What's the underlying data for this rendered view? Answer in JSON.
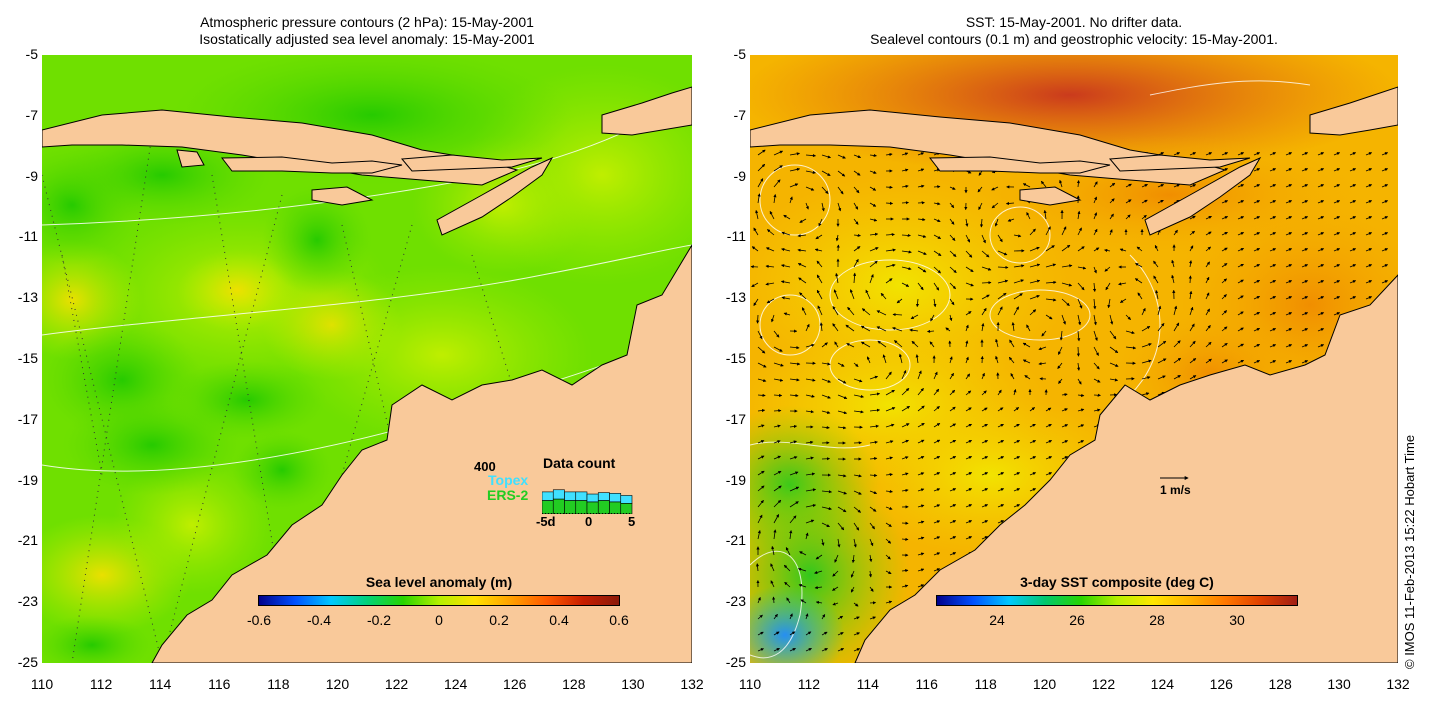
{
  "left_panel": {
    "title_line1": "Atmospheric pressure contours (2 hPa): 15-May-2001",
    "title_line2": "Isostatically adjusted sea level anomaly: 15-May-2001",
    "colorbar": {
      "title": "Sea level anomaly (m)",
      "labels": [
        "-0.6",
        "-0.4",
        "-0.2",
        "0",
        "0.2",
        "0.4",
        "0.6"
      ],
      "range": [
        -0.6,
        0.6
      ]
    },
    "data_count": {
      "title": "Data count",
      "max_label": "400",
      "series_top": "Topex",
      "series_bottom": "ERS-2",
      "x_labels": [
        "-5d",
        "0",
        "5"
      ],
      "topex_color": "#40e0ff",
      "ers2_color": "#22cc22",
      "topex_counts": [
        120,
        130,
        120,
        120,
        110,
        110,
        120,
        110
      ],
      "ers2_counts": [
        190,
        210,
        190,
        190,
        170,
        190,
        170,
        150
      ]
    }
  },
  "right_panel": {
    "title_line1": "SST: 15-May-2001. No drifter data.",
    "title_line2": "Sealevel contours (0.1 m) and geostrophic velocity: 15-May-2001.",
    "colorbar": {
      "title": "3-day SST composite (deg C)",
      "labels": [
        "24",
        "26",
        "28",
        "30"
      ],
      "range": [
        22.5,
        31.5
      ]
    },
    "velocity_scale_label": "1 m/s"
  },
  "axes": {
    "lat_labels": [
      "-5",
      "-7",
      "-9",
      "-11",
      "-13",
      "-15",
      "-17",
      "-19",
      "-21",
      "-23",
      "-25"
    ],
    "lon_labels": [
      "110",
      "112",
      "114",
      "116",
      "118",
      "120",
      "122",
      "124",
      "126",
      "128",
      "130",
      "132"
    ],
    "lat_range": [
      -25,
      -5
    ],
    "lon_range": [
      110,
      132
    ]
  },
  "copyright": "© IMOS 11-Feb-2013 15:22 Hobart Time",
  "colors": {
    "land": "#f9c99a",
    "sla_background": "#6fe000",
    "sst_background": "#f5b000"
  }
}
